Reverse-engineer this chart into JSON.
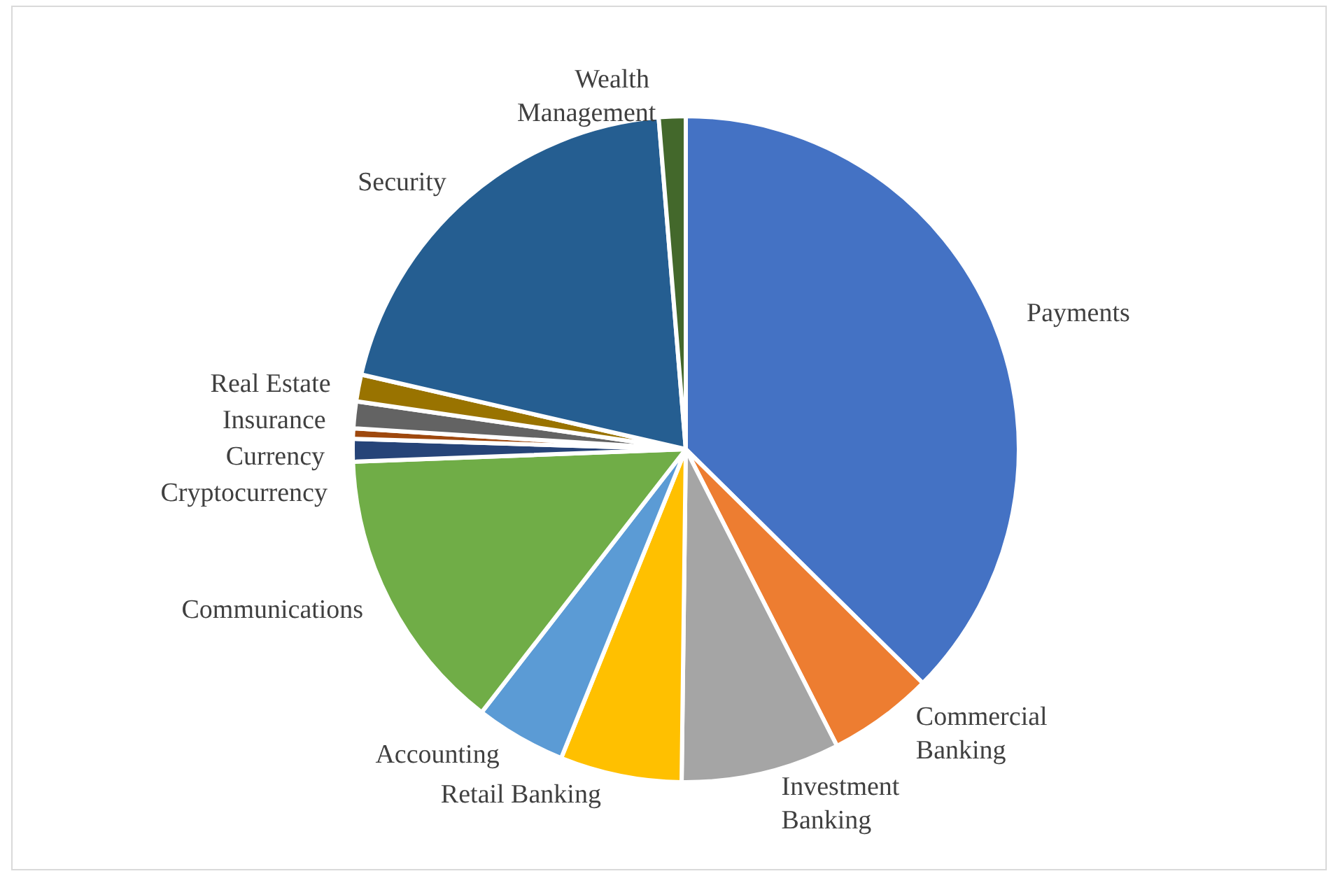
{
  "chart_data": {
    "type": "pie",
    "categories": [
      "Payments",
      "Commercial Banking",
      "Investment Banking",
      "Retail Banking",
      "Accounting",
      "Communications",
      "Cryptocurrency",
      "Currency",
      "Insurance",
      "Real Estate",
      "Security",
      "Wealth Management"
    ],
    "values": [
      37.4,
      5.1,
      7.7,
      5.9,
      4.4,
      13.9,
      1.1,
      0.5,
      1.3,
      1.3,
      20.1,
      1.3
    ],
    "colors": [
      "#4472c4",
      "#ed7d31",
      "#a5a5a5",
      "#ffc000",
      "#5b9bd5",
      "#70ad47",
      "#264478",
      "#9e480e",
      "#636363",
      "#997300",
      "#255e91",
      "#43682b"
    ],
    "legend": false
  }
}
